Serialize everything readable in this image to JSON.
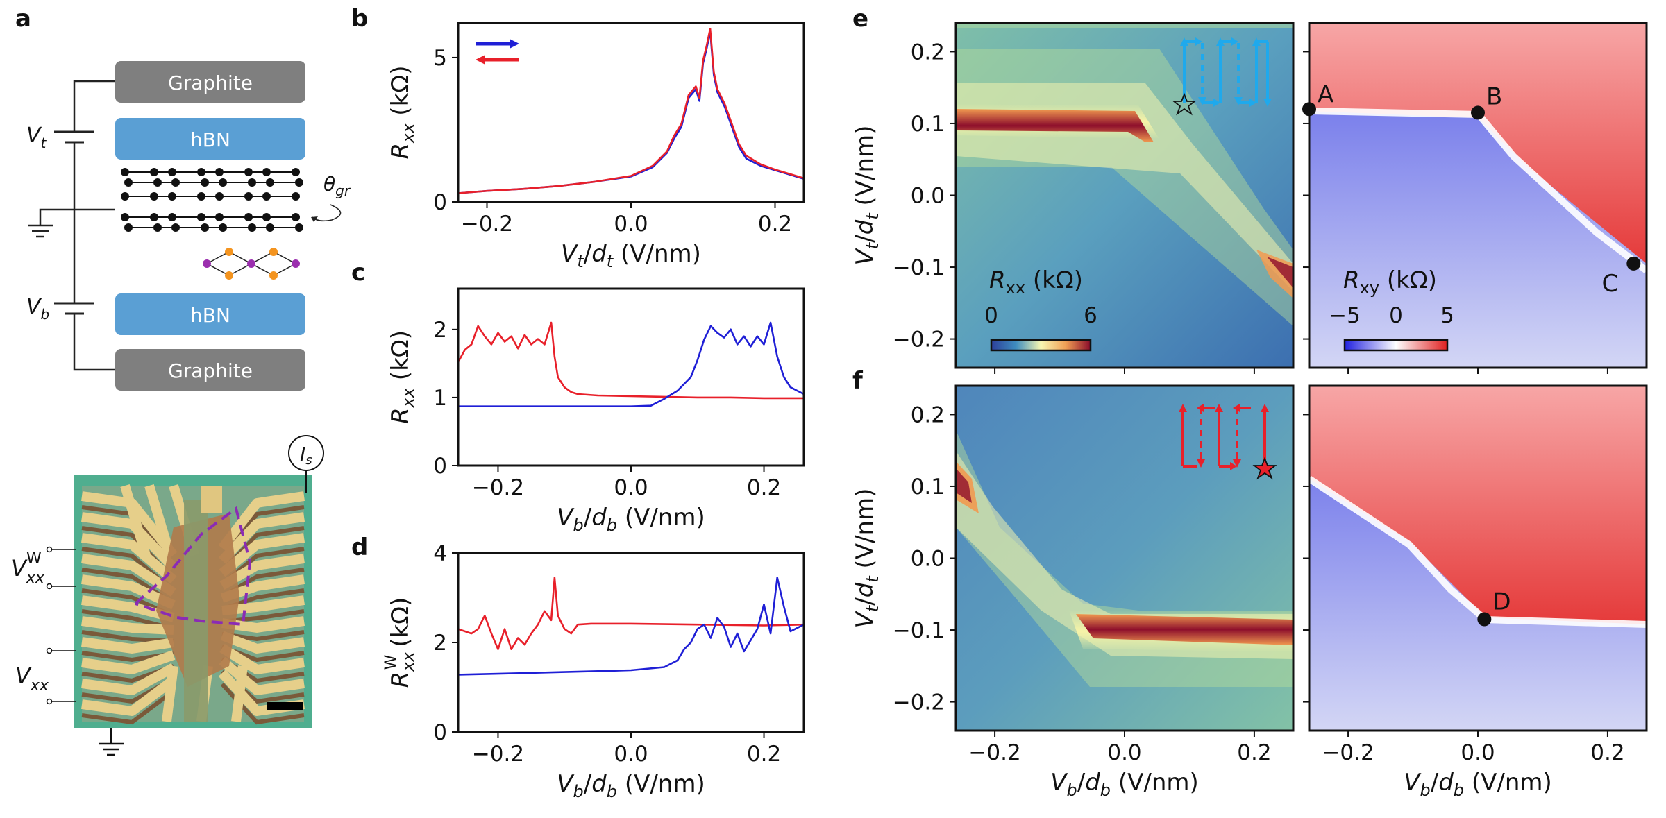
{
  "panel_labels": {
    "a": "a",
    "b": "b",
    "c": "c",
    "d": "d",
    "e": "e",
    "f": "f"
  },
  "schematic": {
    "layers": [
      "Graphite",
      "hBN",
      "hBN",
      "Graphite"
    ],
    "vt": "V",
    "vt_sub": "t",
    "vb": "V",
    "vb_sub": "b",
    "theta": "θ",
    "theta_sub": "gr",
    "is_label": "I",
    "is_sub": "s",
    "vxxw": "V",
    "vxxw_sub": "xx",
    "vxxw_sup": "W",
    "vxx": "V",
    "vxx_sub": "xx",
    "colors": {
      "graphite": "#7f7f7f",
      "hbn": "#5a9fd4"
    }
  },
  "chart_data": [
    {
      "id": "b",
      "type": "line",
      "xlabel": "Vt/dt (V/nm)",
      "ylabel": "Rxx (kΩ)",
      "xlim": [
        -0.24,
        0.24
      ],
      "ylim": [
        0,
        6.2
      ],
      "xticks": [
        "−0.2",
        "0.0",
        "0.2"
      ],
      "xtick_values": [
        -0.2,
        0.0,
        0.2
      ],
      "yticks": [
        "0",
        "5"
      ],
      "ytick_values": [
        0,
        5
      ],
      "series": [
        {
          "name": "forward",
          "color": "#1f1fd6",
          "x": [
            -0.24,
            -0.2,
            -0.15,
            -0.1,
            -0.05,
            0.0,
            0.03,
            0.05,
            0.06,
            0.07,
            0.08,
            0.09,
            0.095,
            0.1,
            0.105,
            0.11,
            0.115,
            0.12,
            0.13,
            0.14,
            0.15,
            0.16,
            0.18,
            0.2,
            0.22,
            0.24
          ],
          "y": [
            0.3,
            0.38,
            0.45,
            0.55,
            0.7,
            0.88,
            1.2,
            1.7,
            2.2,
            2.6,
            3.6,
            3.9,
            3.5,
            4.8,
            5.3,
            5.9,
            4.4,
            3.8,
            3.3,
            2.6,
            1.9,
            1.5,
            1.25,
            1.1,
            0.95,
            0.8
          ]
        },
        {
          "name": "backward",
          "color": "#e8202a",
          "x": [
            -0.24,
            -0.2,
            -0.15,
            -0.1,
            -0.05,
            0.0,
            0.03,
            0.05,
            0.06,
            0.07,
            0.08,
            0.09,
            0.095,
            0.1,
            0.105,
            0.11,
            0.115,
            0.12,
            0.13,
            0.14,
            0.15,
            0.16,
            0.18,
            0.2,
            0.22,
            0.24
          ],
          "y": [
            0.3,
            0.38,
            0.45,
            0.55,
            0.7,
            0.9,
            1.25,
            1.75,
            2.3,
            2.7,
            3.7,
            4.0,
            3.6,
            4.9,
            5.4,
            6.0,
            4.5,
            3.9,
            3.4,
            2.7,
            2.0,
            1.6,
            1.3,
            1.12,
            0.97,
            0.82
          ]
        }
      ]
    },
    {
      "id": "c",
      "type": "line",
      "xlabel": "Vb/db (V/nm)",
      "ylabel": "Rxx (kΩ)",
      "xlim": [
        -0.26,
        0.26
      ],
      "ylim": [
        0,
        2.6
      ],
      "xticks": [
        "−0.2",
        "0.0",
        "0.2"
      ],
      "xtick_values": [
        -0.2,
        0.0,
        0.2
      ],
      "yticks": [
        "0",
        "1",
        "2"
      ],
      "ytick_values": [
        0,
        1,
        2
      ],
      "series": [
        {
          "name": "red",
          "color": "#e8202a",
          "x": [
            -0.26,
            -0.25,
            -0.24,
            -0.23,
            -0.22,
            -0.21,
            -0.2,
            -0.19,
            -0.18,
            -0.17,
            -0.16,
            -0.15,
            -0.14,
            -0.13,
            -0.12,
            -0.115,
            -0.11,
            -0.1,
            -0.09,
            -0.08,
            -0.05,
            0.0,
            0.05,
            0.1,
            0.15,
            0.2,
            0.26
          ],
          "y": [
            1.52,
            1.7,
            1.78,
            2.05,
            1.9,
            1.78,
            1.95,
            1.82,
            1.9,
            1.72,
            1.92,
            1.78,
            1.86,
            1.78,
            2.1,
            1.6,
            1.3,
            1.15,
            1.08,
            1.05,
            1.03,
            1.02,
            1.01,
            1.0,
            1.0,
            0.99,
            0.99
          ]
        },
        {
          "name": "blue",
          "color": "#1f1fd6",
          "x": [
            -0.26,
            -0.2,
            -0.1,
            0.0,
            0.03,
            0.05,
            0.07,
            0.09,
            0.1,
            0.11,
            0.12,
            0.13,
            0.14,
            0.15,
            0.16,
            0.17,
            0.18,
            0.19,
            0.2,
            0.21,
            0.22,
            0.23,
            0.24,
            0.26
          ],
          "y": [
            0.87,
            0.87,
            0.87,
            0.87,
            0.88,
            0.98,
            1.1,
            1.3,
            1.55,
            1.85,
            2.05,
            1.95,
            1.88,
            2.0,
            1.78,
            1.9,
            1.75,
            1.9,
            1.78,
            2.1,
            1.6,
            1.3,
            1.15,
            1.05
          ]
        }
      ]
    },
    {
      "id": "d",
      "type": "line",
      "xlabel": "Vb/db (V/nm)",
      "ylabel": "RxxW (kΩ)",
      "xlim": [
        -0.26,
        0.26
      ],
      "ylim": [
        0,
        4
      ],
      "xticks": [
        "−0.2",
        "0.0",
        "0.2"
      ],
      "xtick_values": [
        -0.2,
        0.0,
        0.2
      ],
      "yticks": [
        "0",
        "2",
        "4"
      ],
      "ytick_values": [
        0,
        2,
        4
      ],
      "series": [
        {
          "name": "red",
          "color": "#e8202a",
          "x": [
            -0.26,
            -0.24,
            -0.23,
            -0.22,
            -0.21,
            -0.2,
            -0.19,
            -0.18,
            -0.17,
            -0.16,
            -0.15,
            -0.14,
            -0.13,
            -0.12,
            -0.115,
            -0.11,
            -0.1,
            -0.09,
            -0.08,
            -0.06,
            0.0,
            0.1,
            0.2,
            0.26
          ],
          "y": [
            2.3,
            2.2,
            2.3,
            2.6,
            2.2,
            1.85,
            2.3,
            1.85,
            2.1,
            1.95,
            2.2,
            2.4,
            2.7,
            2.5,
            3.45,
            2.6,
            2.3,
            2.2,
            2.4,
            2.42,
            2.42,
            2.4,
            2.38,
            2.4
          ]
        },
        {
          "name": "blue",
          "color": "#1f1fd6",
          "x": [
            -0.26,
            -0.2,
            -0.1,
            0.0,
            0.05,
            0.07,
            0.08,
            0.09,
            0.1,
            0.11,
            0.12,
            0.13,
            0.14,
            0.15,
            0.16,
            0.17,
            0.18,
            0.19,
            0.2,
            0.21,
            0.22,
            0.23,
            0.24,
            0.26
          ],
          "y": [
            1.28,
            1.3,
            1.34,
            1.38,
            1.45,
            1.6,
            1.85,
            2.0,
            2.3,
            2.4,
            2.1,
            2.55,
            2.35,
            1.9,
            2.2,
            1.8,
            2.05,
            2.3,
            2.85,
            2.2,
            3.45,
            2.8,
            2.25,
            2.4
          ]
        }
      ]
    },
    {
      "id": "e",
      "type": "heatmap",
      "xlabel": "",
      "ylabel": "Vt/dt (V/nm)",
      "xlim": [
        -0.26,
        0.26
      ],
      "ylim": [
        -0.24,
        0.24
      ],
      "yticks": [
        "0.2",
        "0.1",
        "0.0",
        "−0.1",
        "−0.2"
      ],
      "ytick_values": [
        0.2,
        0.1,
        0.0,
        -0.1,
        -0.2
      ],
      "colorbar_left": {
        "label": "Rxx (kΩ)",
        "ticks": [
          "0",
          "6"
        ]
      },
      "colorbar_right": {
        "label": "Rxy (kΩ)",
        "ticks": [
          "−5",
          "0",
          "5"
        ]
      },
      "points": [
        {
          "label": "A",
          "x": -0.26,
          "y": 0.12
        },
        {
          "label": "B",
          "x": 0.0,
          "y": 0.115
        },
        {
          "label": "C",
          "x": 0.24,
          "y": -0.095
        }
      ]
    },
    {
      "id": "f",
      "type": "heatmap",
      "xlabel": "Vb/db (V/nm)",
      "ylabel": "Vt/dt (V/nm)",
      "xlim": [
        -0.26,
        0.26
      ],
      "ylim": [
        -0.24,
        0.24
      ],
      "xticks": [
        "−0.2",
        "0.0",
        "0.2"
      ],
      "xtick_values": [
        -0.2,
        0.0,
        0.2
      ],
      "yticks": [
        "0.2",
        "0.1",
        "0.0",
        "−0.1",
        "−0.2"
      ],
      "ytick_values": [
        0.2,
        0.1,
        0.0,
        -0.1,
        -0.2
      ],
      "points": [
        {
          "label": "D",
          "x": 0.01,
          "y": -0.085
        }
      ]
    }
  ]
}
